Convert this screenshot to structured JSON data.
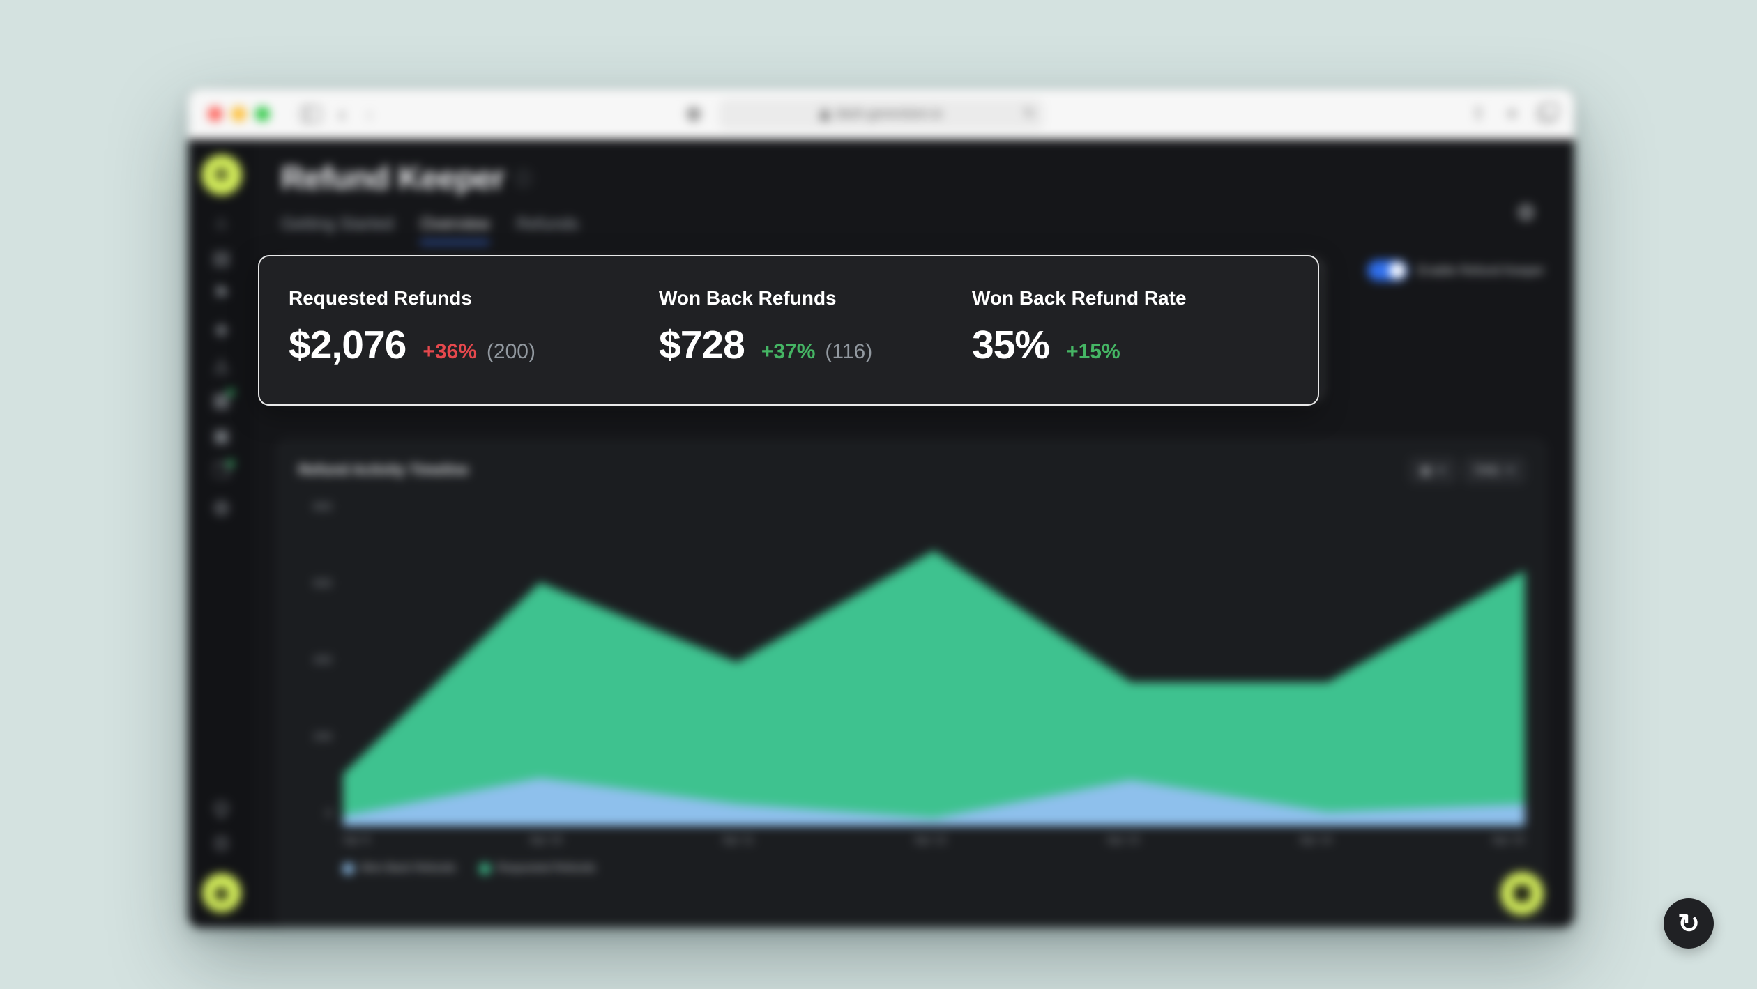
{
  "page": {
    "background": "#d4e2e0"
  },
  "browser": {
    "url": "dash.gorevision.io",
    "traffic_lights": [
      "#ff5f57",
      "#febc2e",
      "#28c840"
    ]
  },
  "sidebar": {
    "icons": [
      {
        "name": "dashboard-icon",
        "glyph": "⌂",
        "badge": false
      },
      {
        "name": "analytics-icon",
        "glyph": "▤",
        "badge": false
      },
      {
        "name": "flag-icon",
        "glyph": "⚑",
        "badge": false
      },
      {
        "name": "campaigns-icon",
        "glyph": "◈",
        "badge": false
      },
      {
        "name": "funnel-icon",
        "glyph": "◬",
        "badge": false
      },
      {
        "name": "billing-icon",
        "glyph": "▦",
        "badge": true
      },
      {
        "name": "products-icon",
        "glyph": "▣",
        "badge": false
      },
      {
        "name": "documents-icon",
        "glyph": "❐",
        "badge": true
      },
      {
        "name": "globe-icon",
        "glyph": "◍",
        "badge": false
      }
    ],
    "bottom_icons": [
      {
        "name": "lightbulb-icon",
        "glyph": "Ϙ"
      },
      {
        "name": "notifications-icon",
        "glyph": "Ʊ"
      }
    ],
    "logo_glyph": "✳",
    "avatar_glyph": "☻"
  },
  "app": {
    "title": "Refund Keeper",
    "tabs": [
      {
        "label": "Getting Started"
      },
      {
        "label": "Overview"
      },
      {
        "label": "Refunds"
      }
    ],
    "active_tab": "Overview",
    "toggle_label": "Enable Refund Keeper",
    "toggle_on": true,
    "accent_blue": "#3b72f0"
  },
  "stats": {
    "items": [
      {
        "label": "Requested Refunds",
        "value": "$2,076",
        "delta": "+36%",
        "delta_color": "#e5484d",
        "count": "(200)"
      },
      {
        "label": "Won Back Refunds",
        "value": "$728",
        "delta": "+37%",
        "delta_color": "#45b564",
        "count": "(116)"
      },
      {
        "label": "Won Back Refund Rate",
        "value": "35%",
        "delta": "+15%",
        "delta_color": "#45b564",
        "count": ""
      }
    ]
  },
  "chart_data": {
    "type": "area",
    "title": "Refund Activity Timeline",
    "categories": [
      "Apr 9",
      "Apr 10",
      "Apr 11",
      "Apr 12",
      "Apr 13",
      "Apr 14",
      "Apr 15"
    ],
    "series": [
      {
        "name": "Requested Refunds",
        "color": "#3ec28f",
        "values": [
          130,
          610,
          410,
          690,
          360,
          360,
          640
        ]
      },
      {
        "name": "Won Back Refunds",
        "color": "#8ec0ec",
        "values": [
          25,
          120,
          55,
          20,
          115,
          35,
          55
        ]
      }
    ],
    "ylim": [
      0,
      800
    ],
    "yticks": [
      0,
      200,
      400,
      600,
      800
    ],
    "xlabel": "",
    "ylabel": "",
    "grid": false,
    "legend_position": "bottom-left",
    "legend_order": [
      "Won Back Refunds",
      "Requested Refunds"
    ],
    "controls": [
      {
        "label": "▦"
      },
      {
        "label": "Daily"
      }
    ]
  }
}
